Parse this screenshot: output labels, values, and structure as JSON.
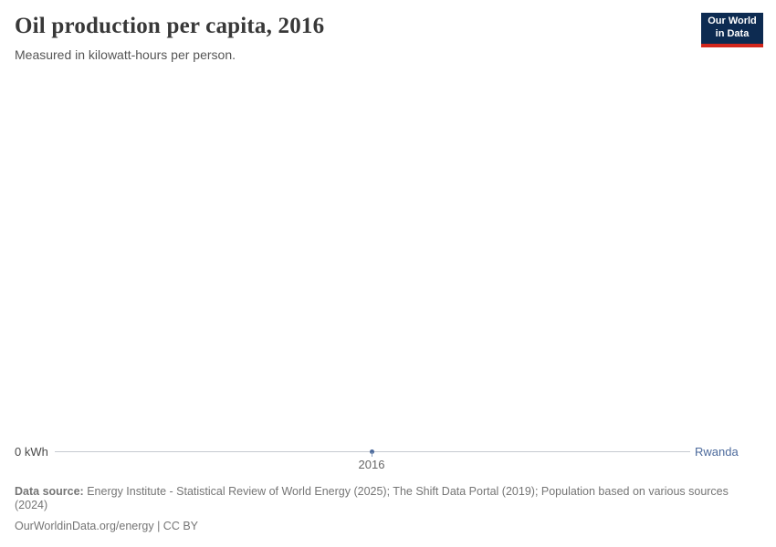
{
  "header": {
    "title": "Oil production per capita, 2016",
    "subtitle": "Measured in kilowatt-hours per person.",
    "logo": {
      "line1": "Our World",
      "line2": "in Data"
    }
  },
  "chart_data": {
    "type": "line",
    "title": "Oil production per capita, 2016",
    "subtitle": "Measured in kilowatt-hours per person.",
    "unit": "kilowatt-hours per person",
    "x": [
      2016
    ],
    "x_tick_labels": [
      "2016"
    ],
    "series": [
      {
        "name": "Rwanda",
        "values": [
          0
        ],
        "color": "#4c6a9c"
      }
    ],
    "y_zero_label": "0 kWh",
    "ylim": [
      0,
      0
    ],
    "xlim": [
      2016,
      2016
    ],
    "grid": false,
    "legend_position": "right-of-axis"
  },
  "footer": {
    "source_label": "Data source:",
    "source_text": " Energy Institute - Statistical Review of World Energy (2025); The Shift Data Portal (2019); Population based on various sources (2024)",
    "link_text": "OurWorldinData.org/energy | CC BY"
  },
  "colors": {
    "series_blue": "#4c6a9c",
    "axis_line_gray": "#c6cad0",
    "logo_navy": "#0d2b51",
    "logo_red": "#d3271c",
    "title_gray": "#383838",
    "footer_gray": "#757575"
  }
}
